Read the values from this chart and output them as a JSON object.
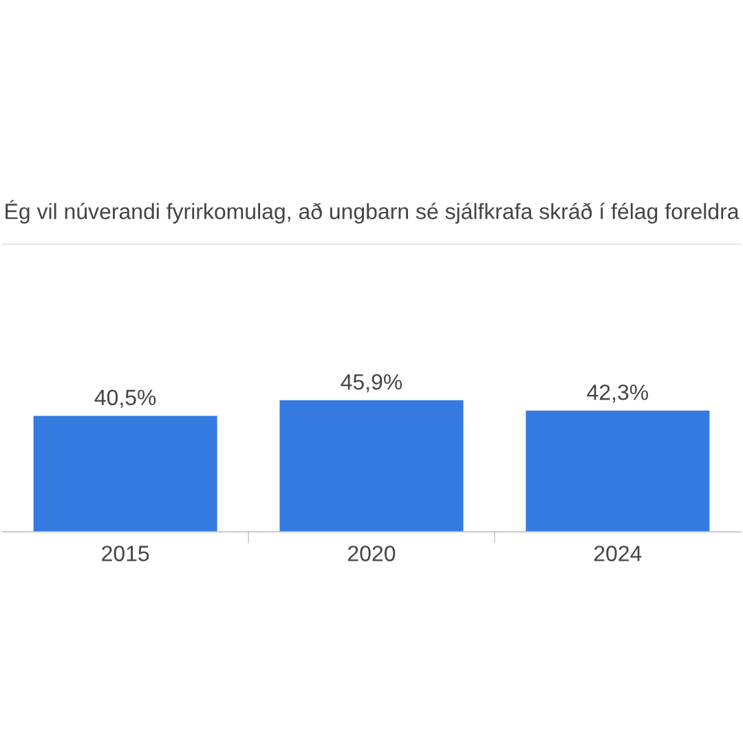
{
  "chart_data": {
    "type": "bar",
    "title": "Ég vil núverandi fyrirkomulag, að ungbarn sé sjálfkrafa skráð í félag foreldra",
    "categories": [
      "2015",
      "2020",
      "2024"
    ],
    "values": [
      40.5,
      45.9,
      42.3
    ],
    "value_labels": [
      "40,5%",
      "45,9%",
      "42,3%"
    ],
    "color": "#357ae0",
    "ylim": [
      0,
      100
    ],
    "grid": false
  }
}
